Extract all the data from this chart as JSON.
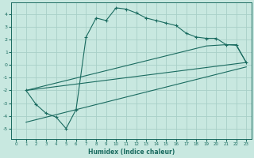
{
  "xlabel": "Humidex (Indice chaleur)",
  "bg_color": "#c8e8e0",
  "grid_color": "#a8d0c8",
  "line_color": "#1a6b60",
  "xlim": [
    -0.5,
    23.5
  ],
  "ylim": [
    -5.8,
    4.9
  ],
  "xticks": [
    0,
    1,
    2,
    3,
    4,
    5,
    6,
    7,
    8,
    9,
    10,
    11,
    12,
    13,
    14,
    15,
    16,
    17,
    18,
    19,
    20,
    21,
    22,
    23
  ],
  "yticks": [
    -5,
    -4,
    -3,
    -2,
    -1,
    0,
    1,
    2,
    3,
    4
  ],
  "line1_x": [
    1,
    2,
    3,
    4,
    5,
    6,
    7,
    8,
    9,
    10,
    11,
    12,
    13,
    14,
    15,
    16,
    17,
    18,
    19,
    20,
    21,
    22,
    23
  ],
  "line1_y": [
    -2.0,
    -3.1,
    -3.8,
    -4.1,
    -5.0,
    -3.5,
    2.2,
    3.7,
    3.5,
    4.5,
    4.4,
    4.1,
    3.7,
    3.5,
    3.3,
    3.1,
    2.5,
    2.2,
    2.1,
    2.1,
    1.6,
    1.6,
    0.2
  ],
  "line2_x": [
    1,
    23
  ],
  "line2_y": [
    -2.0,
    0.2
  ],
  "line3_x": [
    1,
    23
  ],
  "line3_y": [
    -4.5,
    -0.15
  ],
  "line4_x": [
    1,
    19,
    20,
    21,
    22,
    23
  ],
  "line4_y": [
    -2.0,
    1.5,
    1.55,
    1.6,
    1.55,
    0.2
  ]
}
